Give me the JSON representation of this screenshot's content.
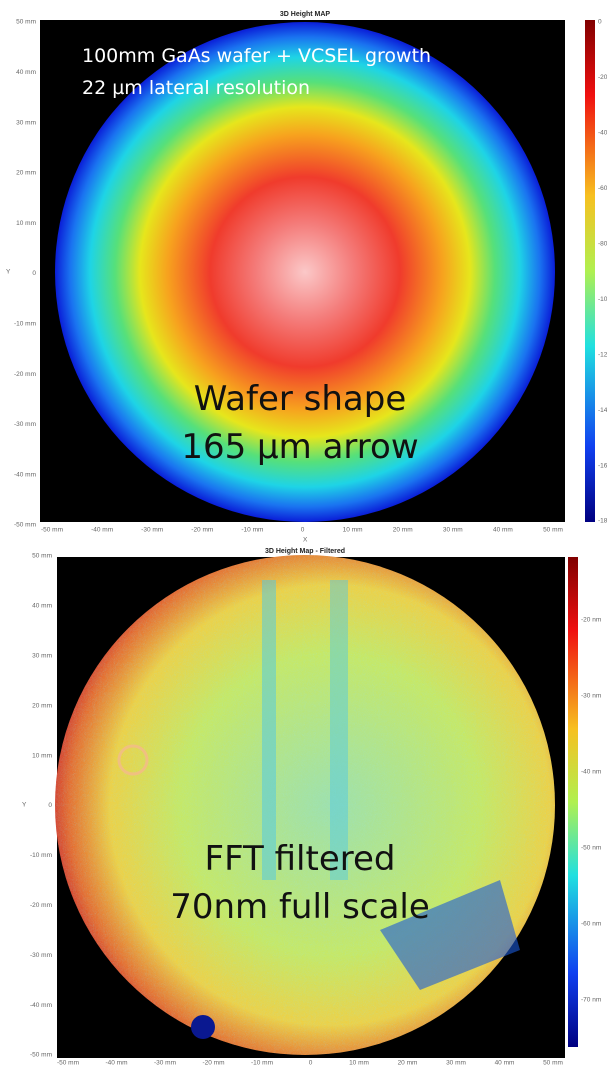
{
  "top": {
    "title": "3D Height MAP",
    "annotation_1": "100mm GaAs wafer + VCSEL growth",
    "annotation_2": "22 µm lateral resolution",
    "annotation_3": "Wafer shape",
    "annotation_4": "165 µm arrow",
    "y_label": "Y",
    "x_label": "X",
    "y_ticks": [
      "50 mm",
      "40 mm",
      "30 mm",
      "20 mm",
      "10 mm",
      "0",
      "-10 mm",
      "-20 mm",
      "-30 mm",
      "-40 mm",
      "-50 mm"
    ],
    "x_ticks": [
      "-50 mm",
      "-40 mm",
      "-30 mm",
      "-20 mm",
      "-10 mm",
      "0",
      "10 mm",
      "20 mm",
      "30 mm",
      "40 mm",
      "50 mm"
    ],
    "colorbar_ticks": [
      "0",
      "-20 µm",
      "-40 µm",
      "-60 µm",
      "-80 µm",
      "-100 µm",
      "-120 µm",
      "-140 µm",
      "-160 µm",
      "-180 µm"
    ]
  },
  "bottom": {
    "title": "3D Height Map - Filtered",
    "annotation_1": "FFT filtered",
    "annotation_2": "70nm full scale",
    "y_label": "Y",
    "y_ticks": [
      "50 mm",
      "40 mm",
      "30 mm",
      "20 mm",
      "10 mm",
      "0",
      "-10 mm",
      "-20 mm",
      "-30 mm",
      "-40 mm",
      "-50 mm"
    ],
    "x_ticks": [
      "-50 mm",
      "-40 mm",
      "-30 mm",
      "-20 mm",
      "-10 mm",
      "0",
      "10 mm",
      "20 mm",
      "30 mm",
      "40 mm",
      "50 mm"
    ],
    "colorbar_ticks": [
      "-20 nm",
      "-30 nm",
      "-40 nm",
      "-50 nm",
      "-60 nm",
      "-70 nm"
    ]
  }
}
